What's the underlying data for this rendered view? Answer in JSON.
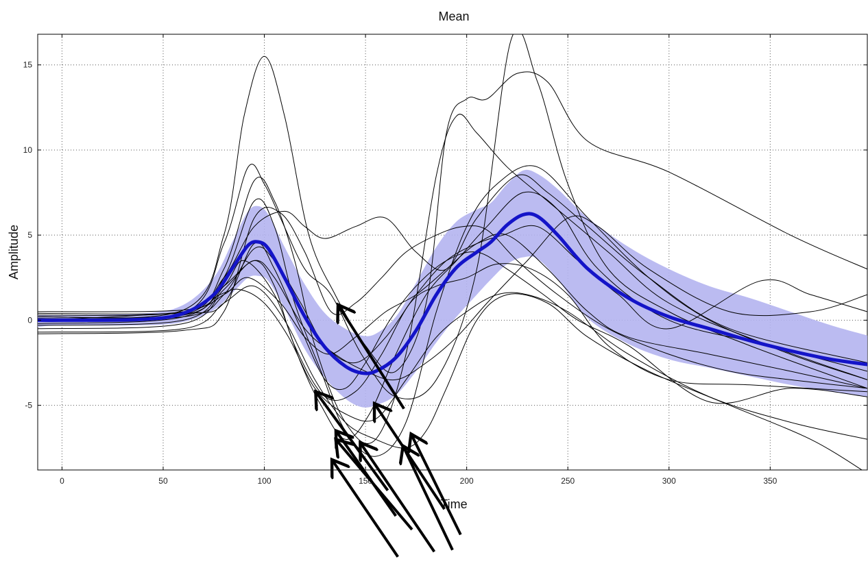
{
  "chart_data": {
    "type": "line",
    "title": "Mean",
    "xlabel": "Time",
    "ylabel": "Amplitude",
    "xlim": [
      -12,
      398
    ],
    "ylim": [
      -8.8,
      16.8
    ],
    "xticks": [
      0,
      50,
      100,
      150,
      200,
      250,
      300,
      350
    ],
    "xtick_labels": [
      "0",
      "50",
      "100",
      "150",
      "200",
      "250",
      "300",
      "350"
    ],
    "yticks": [
      -5,
      0,
      5,
      10,
      15
    ],
    "ytick_labels": [
      "-5",
      "0",
      "5",
      "10",
      "15"
    ],
    "grid": true,
    "grid_style": "dotted",
    "colors": {
      "mean": "#1414c8",
      "band": "#b4b4f0",
      "trials": "#000000",
      "arrows": "#000000"
    },
    "mean": {
      "x": [
        -12,
        0,
        40,
        60,
        75,
        85,
        92,
        97,
        102,
        110,
        120,
        130,
        140,
        148,
        155,
        165,
        175,
        185,
        195,
        205,
        212,
        220,
        228,
        235,
        245,
        260,
        280,
        300,
        320,
        340,
        360,
        380,
        398
      ],
      "y": [
        0,
        0,
        0.05,
        0.4,
        1.5,
        3.2,
        4.4,
        4.6,
        4.2,
        2.5,
        0.2,
        -1.6,
        -2.7,
        -3.1,
        -3.0,
        -2.2,
        -0.6,
        1.5,
        3.1,
        4.0,
        4.6,
        5.6,
        6.2,
        6.1,
        5.0,
        3.0,
        1.3,
        0.2,
        -0.5,
        -1.2,
        -1.8,
        -2.3,
        -2.6
      ]
    },
    "band": {
      "x": [
        -12,
        0,
        40,
        60,
        75,
        85,
        92,
        97,
        102,
        110,
        120,
        130,
        140,
        148,
        155,
        165,
        175,
        185,
        195,
        205,
        212,
        220,
        228,
        235,
        245,
        260,
        280,
        300,
        320,
        340,
        360,
        380,
        398
      ],
      "upper": [
        0.3,
        0.3,
        0.4,
        0.9,
        2.5,
        4.8,
        6.4,
        6.7,
        6.2,
        4.3,
        2.1,
        0.4,
        -0.5,
        -0.9,
        -0.8,
        0.2,
        2.2,
        4.3,
        5.8,
        6.5,
        6.9,
        8.0,
        8.8,
        8.6,
        7.7,
        6.0,
        4.3,
        3.0,
        2.0,
        1.3,
        0.5,
        -0.3,
        -0.9
      ],
      "lower": [
        -0.4,
        -0.3,
        -0.3,
        -0.1,
        0.6,
        1.7,
        2.5,
        2.6,
        2.3,
        0.7,
        -1.7,
        -3.4,
        -4.6,
        -5.1,
        -5.0,
        -4.4,
        -3.0,
        -1.3,
        0.2,
        1.5,
        2.4,
        3.3,
        3.7,
        3.6,
        2.4,
        0.1,
        -1.4,
        -2.3,
        -2.8,
        -3.3,
        -3.8,
        -4.2,
        -4.5
      ]
    },
    "trials": [
      {
        "x": [
          -12,
          60,
          80,
          90,
          100,
          110,
          122,
          135,
          150,
          165,
          180,
          190,
          200,
          210,
          225,
          240,
          260,
          300,
          360,
          398
        ],
        "y": [
          0.2,
          0.6,
          5.0,
          12.0,
          15.5,
          12.0,
          5.0,
          1.5,
          -1.5,
          -3.0,
          1.0,
          11.0,
          13.0,
          13.0,
          14.5,
          14.0,
          10.5,
          8.7,
          5.0,
          3.0
        ]
      },
      {
        "x": [
          -12,
          60,
          80,
          92,
          100,
          108,
          120,
          133,
          148,
          165,
          185,
          205,
          222,
          235,
          250,
          270,
          300,
          340,
          398
        ],
        "y": [
          0.1,
          0.4,
          4.5,
          9.0,
          8.0,
          6.0,
          3.0,
          1.5,
          -2.0,
          -4.5,
          -3.5,
          3.0,
          16.5,
          14.0,
          8.0,
          3.0,
          0.5,
          -1.5,
          -4.0
        ]
      },
      {
        "x": [
          -12,
          60,
          80,
          95,
          105,
          115,
          125,
          140,
          155,
          170,
          185,
          195,
          205,
          220,
          240,
          270,
          300,
          350,
          398
        ],
        "y": [
          0.0,
          0.3,
          3.0,
          8.2,
          7.0,
          3.5,
          -1.5,
          -6.0,
          -7.0,
          -2.0,
          8.5,
          12.0,
          11.0,
          9.0,
          7.0,
          4.0,
          1.0,
          -1.5,
          -3.5
        ]
      },
      {
        "x": [
          -12,
          60,
          80,
          95,
          105,
          115,
          128,
          140,
          155,
          170,
          185,
          200,
          215,
          235,
          260,
          290,
          320,
          360,
          398
        ],
        "y": [
          -0.2,
          0.2,
          2.5,
          7.0,
          5.5,
          1.0,
          -3.0,
          -6.5,
          -8.0,
          -6.0,
          0.5,
          5.5,
          8.0,
          9.0,
          6.0,
          2.5,
          0.0,
          -2.0,
          -3.5
        ]
      },
      {
        "x": [
          -12,
          60,
          80,
          95,
          110,
          120,
          130,
          145,
          160,
          175,
          190,
          205,
          225,
          240,
          260,
          290,
          330,
          398
        ],
        "y": [
          0.3,
          0.5,
          2.5,
          5.5,
          6.4,
          5.5,
          4.8,
          5.5,
          6.0,
          4.0,
          3.0,
          6.0,
          8.5,
          7.5,
          5.5,
          2.5,
          -0.5,
          -2.5
        ]
      },
      {
        "x": [
          -12,
          60,
          80,
          90,
          105,
          118,
          128,
          140,
          152,
          165,
          180,
          195,
          210,
          228,
          245,
          265,
          300,
          350,
          398
        ],
        "y": [
          -0.3,
          0.0,
          2.0,
          3.5,
          1.5,
          -2.5,
          -5.0,
          -7.0,
          -5.5,
          -2.0,
          1.5,
          3.5,
          5.5,
          7.5,
          6.5,
          3.0,
          0.0,
          -1.5,
          -3.0
        ]
      },
      {
        "x": [
          -12,
          60,
          80,
          92,
          108,
          120,
          132,
          145,
          160,
          175,
          190,
          205,
          220,
          240,
          260,
          280,
          320,
          360,
          398
        ],
        "y": [
          0.5,
          0.6,
          1.5,
          2.5,
          1.0,
          -1.0,
          -2.0,
          -1.0,
          0.5,
          1.5,
          3.0,
          4.5,
          5.0,
          3.0,
          0.5,
          -1.0,
          -2.0,
          -3.0,
          -4.0
        ]
      },
      {
        "x": [
          -12,
          60,
          80,
          95,
          105,
          115,
          130,
          145,
          158,
          172,
          185,
          200,
          215,
          232,
          250,
          270,
          300,
          340,
          398
        ],
        "y": [
          -0.5,
          -0.2,
          1.8,
          3.5,
          2.0,
          -1.5,
          -4.5,
          -4.2,
          -2.0,
          1.0,
          2.0,
          2.5,
          3.3,
          3.0,
          1.5,
          -1.5,
          -3.5,
          -3.8,
          -4.2
        ]
      },
      {
        "x": [
          -12,
          60,
          78,
          88,
          100,
          112,
          125,
          140,
          155,
          170,
          185,
          200,
          215,
          230,
          250,
          280,
          320,
          360,
          398
        ],
        "y": [
          0.0,
          0.5,
          1.5,
          1.8,
          1.0,
          -1.0,
          -4.0,
          -5.5,
          -5.8,
          -3.5,
          -1.0,
          0.5,
          1.5,
          1.5,
          0.5,
          -2.0,
          -4.5,
          -6.0,
          -7.0
        ]
      },
      {
        "x": [
          -12,
          60,
          80,
          95,
          105,
          118,
          130,
          140,
          150,
          162,
          175,
          190,
          205,
          220,
          238,
          255,
          280,
          320,
          360,
          398
        ],
        "y": [
          0.4,
          0.4,
          1.0,
          4.5,
          3.0,
          -0.5,
          -3.5,
          -4.0,
          -2.5,
          0.0,
          2.0,
          3.5,
          4.0,
          3.0,
          1.5,
          0.0,
          -1.5,
          -4.8,
          -4.0,
          -4.5
        ]
      },
      {
        "x": [
          -12,
          60,
          80,
          95,
          108,
          120,
          133,
          145,
          158,
          170,
          185,
          198,
          210,
          225,
          245,
          270,
          300,
          330,
          360,
          398
        ],
        "y": [
          -0.8,
          -0.6,
          0.5,
          6.0,
          6.3,
          4.0,
          0.5,
          1.0,
          2.5,
          4.0,
          5.0,
          5.5,
          5.3,
          3.5,
          1.5,
          -0.5,
          -2.0,
          -3.0,
          -3.5,
          -4.0
        ]
      },
      {
        "x": [
          -12,
          60,
          80,
          95,
          110,
          125,
          140,
          155,
          170,
          180,
          190,
          205,
          220,
          240,
          260,
          290,
          330,
          370,
          398
        ],
        "y": [
          -0.7,
          -0.5,
          1.0,
          2.0,
          0.0,
          -3.5,
          -6.0,
          -7.0,
          -7.5,
          -6.5,
          -4.0,
          0.0,
          1.5,
          1.0,
          -1.0,
          -3.0,
          -5.0,
          -7.0,
          -9.0
        ]
      },
      {
        "x": [
          -12,
          60,
          80,
          95,
          105,
          120,
          135,
          150,
          165,
          180,
          195,
          210,
          230,
          250,
          265,
          290,
          330,
          370,
          398
        ],
        "y": [
          0.2,
          0.3,
          2.0,
          3.5,
          2.5,
          -0.5,
          -2.0,
          -3.0,
          -3.5,
          -2.5,
          -1.0,
          1.0,
          3.5,
          6.0,
          5.5,
          3.0,
          0.5,
          0.5,
          1.5
        ]
      },
      {
        "x": [
          -12,
          60,
          80,
          95,
          105,
          118,
          130,
          145,
          160,
          175,
          190,
          205,
          218,
          235,
          255,
          275,
          300,
          345,
          370,
          398
        ],
        "y": [
          0.1,
          0.2,
          1.5,
          4.2,
          3.5,
          1.0,
          -1.5,
          -2.5,
          -1.0,
          1.5,
          3.5,
          4.5,
          5.0,
          5.5,
          3.5,
          1.5,
          -0.5,
          2.3,
          1.5,
          0.5
        ]
      }
    ],
    "arrows": [
      {
        "from": [
          169,
          -5.2
        ],
        "to": [
          137,
          0.8
        ]
      },
      {
        "from": [
          161,
          -10.0
        ],
        "to": [
          126,
          -4.3
        ]
      },
      {
        "from": [
          165,
          -11.5
        ],
        "to": [
          136,
          -6.6
        ]
      },
      {
        "from": [
          173,
          -12.3
        ],
        "to": [
          136,
          -7.1
        ]
      },
      {
        "from": [
          166,
          -13.9
        ],
        "to": [
          134,
          -8.3
        ]
      },
      {
        "from": [
          184,
          -13.6
        ],
        "to": [
          148,
          -7.3
        ]
      },
      {
        "from": [
          189,
          -11.1
        ],
        "to": [
          155,
          -5.0
        ]
      },
      {
        "from": [
          193,
          -13.5
        ],
        "to": [
          169,
          -7.5
        ]
      },
      {
        "from": [
          197,
          -12.6
        ],
        "to": [
          173,
          -6.8
        ]
      }
    ]
  }
}
